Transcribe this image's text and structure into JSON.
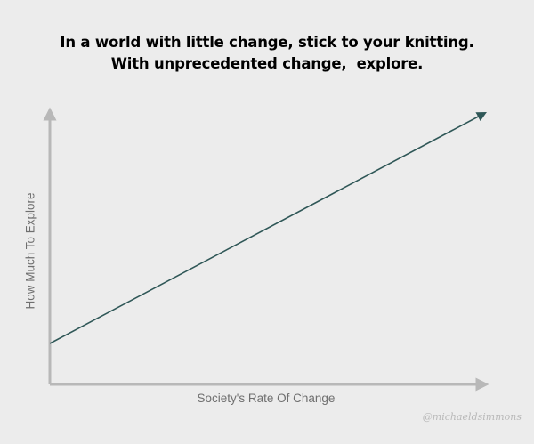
{
  "title": {
    "line1": "In a world with little change, stick to your knitting.",
    "line2": "With unprecedented change,  explore."
  },
  "axes": {
    "y_label": "How Much To Explore",
    "x_label": "Society's Rate Of Change"
  },
  "signature": "@michaeldsimmons",
  "colors": {
    "background": "#ececec",
    "axis": "#b8b8b8",
    "trend_line": "#2f5757",
    "title": "#000000",
    "axis_label": "#6f6f6f"
  },
  "trend": {
    "direction": "increasing",
    "shape": "linear",
    "arrow_at_end": true
  }
}
